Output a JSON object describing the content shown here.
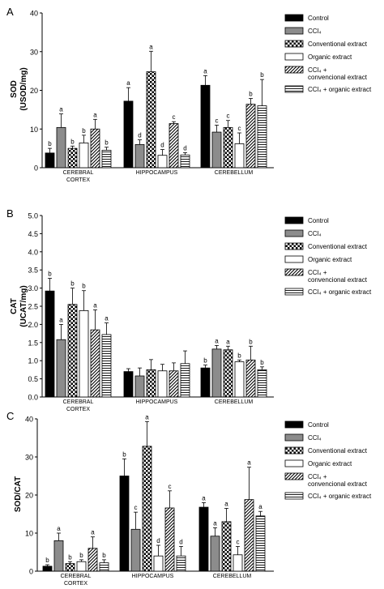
{
  "chart_data": [
    {
      "type": "bar",
      "panel_label": "A",
      "ylabel": "SOD",
      "ylabel_unit": "(USOD/mg)",
      "ylim": [
        0,
        40
      ],
      "yticks": [
        "0",
        "10",
        "20",
        "30",
        "40"
      ],
      "categories": [
        [
          "CEREBRAL",
          "CORTEX"
        ],
        [
          "HIPPOCAMPUS"
        ],
        [
          "CEREBELLUM"
        ]
      ],
      "series": [
        {
          "name": "Control",
          "pattern": "solid",
          "values": [
            3.8,
            17.2,
            21.3
          ],
          "errors": [
            1.2,
            3.5,
            2.5
          ],
          "letters": [
            "b",
            "a",
            "a"
          ]
        },
        {
          "name": "CCl₄",
          "pattern": "gray",
          "values": [
            10.4,
            6.0,
            9.2
          ],
          "errors": [
            3.5,
            1.2,
            1.8
          ],
          "letters": [
            "a",
            "d",
            "c"
          ]
        },
        {
          "name": "Conventional extract",
          "pattern": "checker",
          "values": [
            5.0,
            24.8,
            10.4
          ],
          "errors": [
            0.6,
            5.3,
            1.8
          ],
          "letters": [
            "b",
            "a",
            "c"
          ]
        },
        {
          "name": "Organic extract",
          "pattern": "white",
          "values": [
            6.4,
            3.2,
            6.2
          ],
          "errors": [
            2.0,
            1.5,
            2.8
          ],
          "letters": [
            "b",
            "d",
            "c"
          ]
        },
        {
          "name": "CCl₄ + convencional extract",
          "pattern": "diagonal",
          "values": [
            10.0,
            11.4,
            16.4
          ],
          "errors": [
            2.5,
            0.5,
            1.5
          ],
          "letters": [
            "a",
            "c",
            "b"
          ]
        },
        {
          "name": "CCl₄ + organic extract",
          "pattern": "horizontal",
          "values": [
            4.5,
            3.3,
            16.0
          ],
          "errors": [
            0.8,
            0.6,
            6.8
          ],
          "letters": [
            "b",
            "d",
            "b"
          ]
        }
      ]
    },
    {
      "type": "bar",
      "panel_label": "B",
      "ylabel": "CAT",
      "ylabel_unit": "(UCAT/mg)",
      "ylim": [
        0,
        5
      ],
      "yticks": [
        "0.0",
        "0.5",
        "1.0",
        "1.5",
        "2.0",
        "2.5",
        "3.0",
        "3.5",
        "4.0",
        "4.5",
        "5.0"
      ],
      "categories": [
        [
          "CEREBRAL",
          "CORTEX"
        ],
        [
          "HIPPOCAMPUS"
        ],
        [
          "CEREBELLUM"
        ]
      ],
      "series": [
        {
          "name": "Control",
          "pattern": "solid",
          "values": [
            2.92,
            0.7,
            0.8
          ],
          "errors": [
            0.35,
            0.08,
            0.08
          ],
          "letters": [
            "b",
            "",
            "b"
          ]
        },
        {
          "name": "CCl₄",
          "pattern": "gray",
          "values": [
            1.58,
            0.58,
            1.32
          ],
          "errors": [
            0.42,
            0.22,
            0.1
          ],
          "letters": [
            "a",
            "",
            "a"
          ]
        },
        {
          "name": "Conventional extract",
          "pattern": "checker",
          "values": [
            2.55,
            0.75,
            1.3
          ],
          "errors": [
            0.45,
            0.28,
            0.1
          ],
          "letters": [
            "b",
            "",
            "a"
          ]
        },
        {
          "name": "Organic extract",
          "pattern": "white",
          "values": [
            2.38,
            0.72,
            0.97
          ],
          "errors": [
            0.55,
            0.18,
            0.05
          ],
          "letters": [
            "b",
            "",
            "b"
          ]
        },
        {
          "name": "CCl₄ + convencional extract",
          "pattern": "diagonal",
          "values": [
            1.85,
            0.72,
            1.02
          ],
          "errors": [
            0.55,
            0.22,
            0.38
          ],
          "letters": [
            "a",
            "",
            "b"
          ]
        },
        {
          "name": "CCl₄ + organic extract",
          "pattern": "horizontal",
          "values": [
            1.72,
            0.92,
            0.75
          ],
          "errors": [
            0.32,
            0.35,
            0.08
          ],
          "letters": [
            "a",
            "",
            "b"
          ]
        }
      ]
    },
    {
      "type": "bar",
      "panel_label": "C",
      "ylabel": "SOD/CAT",
      "ylabel_unit": "",
      "ylim": [
        0,
        40
      ],
      "yticks": [
        "0",
        "10",
        "20",
        "30",
        "40"
      ],
      "categories": [
        [
          "CEREBRAL",
          "CORTEX"
        ],
        [
          "HIPPOCAMPUS"
        ],
        [
          "CEREBELLUM"
        ]
      ],
      "series": [
        {
          "name": "Control",
          "pattern": "solid",
          "values": [
            1.3,
            25.0,
            16.8
          ],
          "errors": [
            0.4,
            4.5,
            1.2
          ],
          "letters": [
            "b",
            "b",
            "a"
          ]
        },
        {
          "name": "CCl₄",
          "pattern": "gray",
          "values": [
            8.0,
            11.0,
            9.2
          ],
          "errors": [
            2.0,
            4.5,
            2.2
          ],
          "letters": [
            "a",
            "c",
            "a"
          ]
        },
        {
          "name": "Conventional extract",
          "pattern": "checker",
          "values": [
            2.0,
            32.8,
            13.0
          ],
          "errors": [
            0.5,
            6.5,
            3.5
          ],
          "letters": [
            "b",
            "a",
            "a"
          ]
        },
        {
          "name": "Organic extract",
          "pattern": "white",
          "values": [
            2.5,
            4.0,
            4.3
          ],
          "errors": [
            0.5,
            2.8,
            2.2
          ],
          "letters": [
            "b",
            "d",
            "c"
          ]
        },
        {
          "name": "CCl₄ + convencional extract",
          "pattern": "diagonal",
          "values": [
            6.0,
            16.6,
            18.8
          ],
          "errors": [
            3.0,
            4.5,
            8.5
          ],
          "letters": [
            "a",
            "c",
            "a"
          ]
        },
        {
          "name": "CCl₄ + organic extract",
          "pattern": "horizontal",
          "values": [
            2.2,
            4.0,
            14.5
          ],
          "errors": [
            0.8,
            2.5,
            1.2
          ],
          "letters": [
            "b",
            "d",
            "a"
          ]
        }
      ]
    }
  ]
}
